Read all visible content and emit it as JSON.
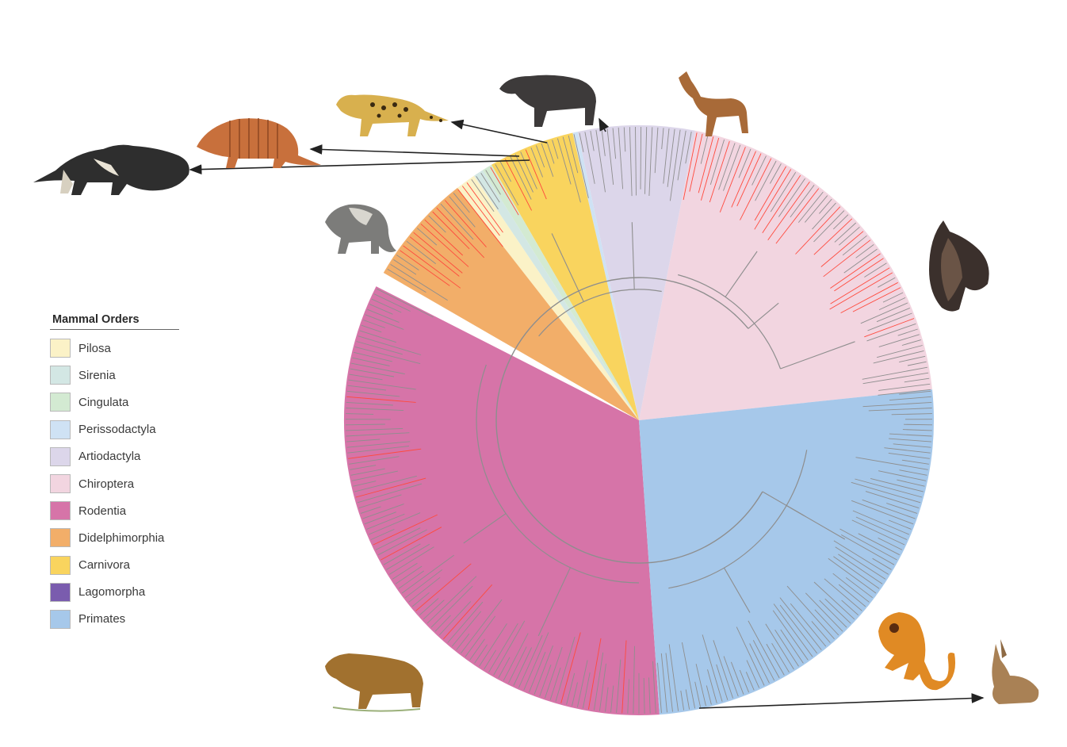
{
  "legend": {
    "title": "Mammal Orders",
    "items": [
      {
        "label": "Pilosa",
        "color": "#fbf2c7"
      },
      {
        "label": "Sirenia",
        "color": "#d3e7e4"
      },
      {
        "label": "Cingulata",
        "color": "#d3ead2"
      },
      {
        "label": "Perissodactyla",
        "color": "#cfe2f4"
      },
      {
        "label": "Artiodactyla",
        "color": "#dcd6ea"
      },
      {
        "label": "Chiroptera",
        "color": "#f2d5e0"
      },
      {
        "label": "Rodentia",
        "color": "#d674a8"
      },
      {
        "label": "Didelphimorphia",
        "color": "#f2ae69"
      },
      {
        "label": "Carnivora",
        "color": "#f9d45e"
      },
      {
        "label": "Lagomorpha",
        "color": "#7a5cae"
      },
      {
        "label": "Primates",
        "color": "#a6c8ea"
      }
    ]
  },
  "tree_colors": {
    "branch": "#8e8e8e",
    "highlight": "#ff4a3d"
  },
  "animals": [
    "anteater-illustration",
    "armadillo-illustration",
    "ocelot-illustration",
    "tapir-illustration",
    "deer-illustration",
    "opossum-illustration",
    "bat-illustration",
    "capybara-illustration",
    "howler-monkey-illustration",
    "hare-illustration"
  ]
}
